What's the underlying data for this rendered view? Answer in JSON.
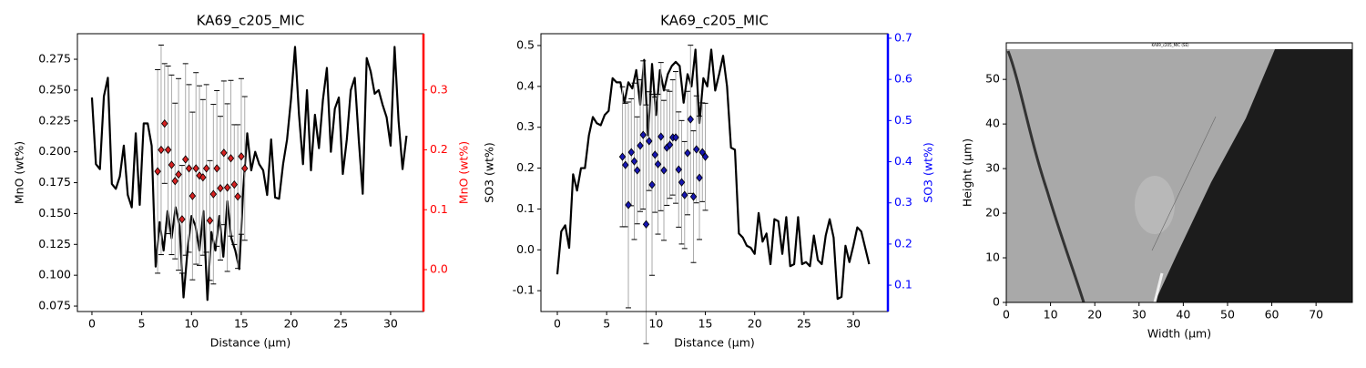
{
  "chart_data": [
    {
      "type": "line",
      "title": "KA69_c205_MIC",
      "x_label": "Distance (µm)",
      "y_label": "MnO (wt%)",
      "y2_label": "MnO (wt%)",
      "y2_color": "#ff0000",
      "x": [
        0,
        0.4,
        0.8,
        1.2,
        1.6,
        2,
        2.4,
        2.8,
        3.2,
        3.6,
        4,
        4.4,
        4.8,
        5.2,
        5.6,
        6,
        6.4,
        6.8,
        7.2,
        7.6,
        8,
        8.4,
        8.8,
        9.2,
        9.6,
        10,
        10.4,
        10.8,
        11.2,
        11.6,
        12,
        12.4,
        12.8,
        13.2,
        13.6,
        14,
        14.4,
        14.8,
        15.2,
        15.6,
        16,
        16.4,
        16.8,
        17.2,
        17.6,
        18,
        18.4,
        18.8,
        19.2,
        19.6,
        20,
        20.4,
        20.8,
        21.2,
        21.6,
        22,
        22.4,
        22.8,
        23.2,
        23.6,
        24,
        24.4,
        24.8,
        25.2,
        25.6,
        26,
        26.4,
        26.8,
        27.2,
        27.6,
        28,
        28.4,
        28.8,
        29.2,
        29.6,
        30,
        30.4,
        30.8,
        31.2,
        31.6
      ],
      "series": [
        {
          "color": "#000000",
          "values": [
            0.244,
            0.19,
            0.186,
            0.245,
            0.26,
            0.174,
            0.17,
            0.18,
            0.205,
            0.165,
            0.155,
            0.215,
            0.157,
            0.223,
            0.223,
            0.205,
            0.107,
            0.143,
            0.12,
            0.152,
            0.13,
            0.155,
            0.14,
            0.082,
            0.12,
            0.148,
            0.14,
            0.12,
            0.152,
            0.08,
            0.135,
            0.12,
            0.148,
            0.115,
            0.16,
            0.13,
            0.12,
            0.105,
            0.17,
            0.215,
            0.185,
            0.2,
            0.19,
            0.185,
            0.165,
            0.21,
            0.163,
            0.162,
            0.19,
            0.21,
            0.243,
            0.285,
            0.23,
            0.19,
            0.25,
            0.185,
            0.23,
            0.203,
            0.242,
            0.268,
            0.2,
            0.235,
            0.244,
            0.182,
            0.21,
            0.25,
            0.26,
            0.21,
            0.166,
            0.276,
            0.265,
            0.247,
            0.25,
            0.238,
            0.228,
            0.205,
            0.285,
            0.225,
            0.186,
            0.213
          ]
        },
        {
          "type": "scatter",
          "axis": "y2",
          "color": "#d42020",
          "x": [
            6.6,
            6.95,
            7.3,
            7.65,
            8.0,
            8.35,
            8.7,
            9.05,
            9.4,
            9.75,
            10.1,
            10.45,
            10.8,
            11.15,
            11.5,
            11.85,
            12.2,
            12.55,
            12.9,
            13.25,
            13.6,
            13.95,
            14.3,
            14.65,
            15.0,
            15.35
          ],
          "values": [
            0.164,
            0.2,
            0.244,
            0.2,
            0.175,
            0.148,
            0.159,
            0.084,
            0.184,
            0.169,
            0.123,
            0.169,
            0.157,
            0.154,
            0.169,
            0.082,
            0.126,
            0.169,
            0.136,
            0.195,
            0.137,
            0.186,
            0.142,
            0.122,
            0.189,
            0.169
          ],
          "errors": [
            0.17,
            0.175,
            0.1,
            0.14,
            0.15,
            0.13,
            0.16,
            0.09,
            0.16,
            0.14,
            0.14,
            0.16,
            0.15,
            0.13,
            0.14,
            0.1,
            0.15,
            0.13,
            0.12,
            0.12,
            0.14,
            0.13,
            0.1,
            0.12,
            0.13,
            0.12
          ]
        }
      ],
      "xlim": [
        -1.46,
        33.3
      ],
      "xticks": [
        0,
        5,
        10,
        15,
        20,
        25,
        30
      ],
      "ylim": [
        0.0706,
        0.2957
      ],
      "yticks": [
        0.075,
        {
          "value": 0.1,
          "label": "0.100"
        },
        0.125,
        {
          "value": 0.15,
          "label": "0.150"
        },
        0.175,
        {
          "value": 0.2,
          "label": "0.200"
        },
        0.225,
        {
          "value": 0.25,
          "label": "0.250"
        },
        0.275
      ],
      "y2lim": [
        -0.07,
        0.394
      ],
      "y2ticks": [
        {
          "value": 0,
          "label": "0.0"
        },
        0.1,
        0.2,
        0.3
      ]
    },
    {
      "type": "line",
      "title": "KA69_c205_MIC",
      "x_label": "Distance (µm)",
      "y_label": "SO3 (wt%)",
      "y2_label": "SO3 (wt%)",
      "y2_color": "#0000ff",
      "x": [
        0,
        0.4,
        0.8,
        1.2,
        1.6,
        2,
        2.4,
        2.8,
        3.2,
        3.6,
        4,
        4.4,
        4.8,
        5.2,
        5.6,
        6,
        6.4,
        6.8,
        7.2,
        7.6,
        8,
        8.4,
        8.8,
        9.2,
        9.6,
        10,
        10.4,
        10.8,
        11.2,
        11.6,
        12,
        12.4,
        12.8,
        13.2,
        13.6,
        14,
        14.4,
        14.8,
        15.2,
        15.6,
        16,
        16.4,
        16.8,
        17.2,
        17.6,
        18,
        18.4,
        18.8,
        19.2,
        19.6,
        20,
        20.4,
        20.8,
        21.2,
        21.6,
        22,
        22.4,
        22.8,
        23.2,
        23.6,
        24,
        24.4,
        24.8,
        25.2,
        25.6,
        26,
        26.4,
        26.8,
        27.2,
        27.6,
        28,
        28.4,
        28.8,
        29.2,
        29.6,
        30,
        30.4,
        30.8,
        31.2,
        31.6
      ],
      "series": [
        {
          "color": "#000000",
          "values": [
            -0.06,
            0.045,
            0.06,
            0.005,
            0.185,
            0.145,
            0.2,
            0.2,
            0.28,
            0.325,
            0.31,
            0.305,
            0.33,
            0.34,
            0.42,
            0.41,
            0.41,
            0.36,
            0.41,
            0.395,
            0.44,
            0.355,
            0.465,
            0.28,
            0.455,
            0.33,
            0.44,
            0.39,
            0.43,
            0.45,
            0.46,
            0.45,
            0.36,
            0.43,
            0.4,
            0.49,
            0.31,
            0.42,
            0.4,
            0.49,
            0.39,
            0.43,
            0.475,
            0.4,
            0.25,
            0.245,
            0.04,
            0.03,
            0.01,
            0.005,
            -0.01,
            0.09,
            0.02,
            0.04,
            -0.035,
            0.075,
            0.07,
            -0.01,
            0.08,
            -0.04,
            -0.035,
            0.08,
            -0.035,
            -0.03,
            -0.04,
            0.035,
            -0.025,
            -0.035,
            0.035,
            0.075,
            0.03,
            -0.12,
            -0.115,
            0.01,
            -0.03,
            0.01,
            0.055,
            0.045,
            0.005,
            -0.035
          ]
        },
        {
          "type": "scatter",
          "axis": "y2",
          "color": "#1515b0",
          "x": [
            6.6,
            6.9,
            7.2,
            7.5,
            7.8,
            8.1,
            8.4,
            8.7,
            9.0,
            9.3,
            9.6,
            9.9,
            10.2,
            10.5,
            10.8,
            11.1,
            11.4,
            11.7,
            12.0,
            12.3,
            12.6,
            12.9,
            13.2,
            13.5,
            13.8,
            14.1,
            14.4,
            14.7,
            15.0
          ],
          "values": [
            0.412,
            0.392,
            0.295,
            0.423,
            0.401,
            0.379,
            0.439,
            0.465,
            0.248,
            0.45,
            0.344,
            0.417,
            0.394,
            0.461,
            0.379,
            0.434,
            0.441,
            0.459,
            0.459,
            0.381,
            0.35,
            0.319,
            0.421,
            0.503,
            0.315,
            0.43,
            0.361,
            0.423,
            0.412
          ],
          "errors": [
            0.17,
            0.15,
            0.25,
            0.13,
            0.19,
            0.13,
            0.16,
            0.18,
            0.29,
            0.12,
            0.22,
            0.14,
            0.17,
            0.18,
            0.17,
            0.14,
            0.13,
            0.14,
            0.16,
            0.14,
            0.15,
            0.13,
            0.15,
            0.18,
            0.16,
            0.13,
            0.15,
            0.12,
            0.13
          ]
        }
      ],
      "xlim": [
        -1.66,
        33.5
      ],
      "xticks": [
        0,
        5,
        10,
        15,
        20,
        25,
        30
      ],
      "ylim": [
        -0.151,
        0.529
      ],
      "yticks": [
        -0.1,
        {
          "value": 0,
          "label": "0.0"
        },
        0.1,
        0.2,
        0.3,
        0.4,
        0.5
      ],
      "y2lim": [
        0.036,
        0.711
      ],
      "y2ticks": [
        0.1,
        0.2,
        0.3,
        0.4,
        0.5,
        0.6,
        0.7
      ]
    },
    {
      "type": "image",
      "image_title": "KA69_c205_MIC (SE)",
      "x_label": "Width (µm)",
      "y_label": "Height (µm)",
      "xlim": [
        0,
        78.2
      ],
      "xticks": [
        0,
        10,
        20,
        30,
        40,
        50,
        60,
        70
      ],
      "ylim": [
        0,
        58.2
      ],
      "yticks": [
        0,
        10,
        20,
        30,
        40,
        50
      ]
    }
  ]
}
